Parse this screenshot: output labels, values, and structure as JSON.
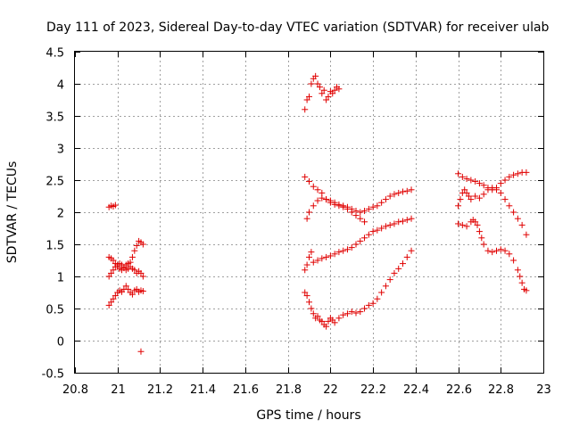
{
  "chart_data": {
    "type": "scatter",
    "title": "Day 111 of 2023, Sidereal Day-to-day VTEC variation (SDTVAR) for receiver ulab",
    "xlabel": "GPS time / hours",
    "ylabel": "SDTVAR / TECUs",
    "xlim": [
      20.8,
      23.0
    ],
    "ylim": [
      -0.5,
      4.5
    ],
    "xticks": [
      "20.8",
      "21",
      "21.2",
      "21.4",
      "21.6",
      "21.8",
      "22",
      "22.2",
      "22.4",
      "22.6",
      "22.8",
      "23"
    ],
    "yticks": [
      "-0.5",
      "0",
      "0.5",
      "1",
      "1.5",
      "2",
      "2.5",
      "3",
      "3.5",
      "4",
      "4.5"
    ],
    "grid": true,
    "marker": "+",
    "color": "#e00000",
    "series": [
      {
        "name": "seg-a1",
        "points": [
          [
            20.96,
            2.08
          ],
          [
            20.97,
            2.1
          ],
          [
            20.98,
            2.09
          ],
          [
            20.99,
            2.11
          ]
        ]
      },
      {
        "name": "seg-a2",
        "points": [
          [
            20.96,
            1.3
          ],
          [
            20.97,
            1.28
          ],
          [
            20.98,
            1.25
          ],
          [
            20.99,
            1.2
          ],
          [
            21.0,
            1.15
          ],
          [
            21.01,
            1.12
          ],
          [
            21.02,
            1.1
          ],
          [
            21.03,
            1.13
          ],
          [
            21.04,
            1.18
          ],
          [
            21.05,
            1.2
          ],
          [
            21.06,
            1.22
          ],
          [
            21.07,
            1.3
          ],
          [
            21.08,
            1.4
          ],
          [
            21.09,
            1.48
          ],
          [
            21.1,
            1.55
          ],
          [
            21.11,
            1.53
          ],
          [
            21.12,
            1.5
          ]
        ]
      },
      {
        "name": "seg-a3",
        "points": [
          [
            20.96,
            1.0
          ],
          [
            20.97,
            1.05
          ],
          [
            20.98,
            1.1
          ],
          [
            20.99,
            1.15
          ],
          [
            21.0,
            1.18
          ],
          [
            21.01,
            1.2
          ],
          [
            21.02,
            1.18
          ],
          [
            21.03,
            1.15
          ],
          [
            21.04,
            1.1
          ],
          [
            21.05,
            1.12
          ],
          [
            21.06,
            1.15
          ],
          [
            21.07,
            1.12
          ],
          [
            21.08,
            1.1
          ],
          [
            21.09,
            1.05
          ],
          [
            21.1,
            1.08
          ],
          [
            21.11,
            1.05
          ],
          [
            21.12,
            1.0
          ]
        ]
      },
      {
        "name": "seg-a4",
        "points": [
          [
            20.96,
            0.55
          ],
          [
            20.97,
            0.6
          ],
          [
            20.98,
            0.65
          ],
          [
            20.99,
            0.7
          ],
          [
            21.0,
            0.75
          ],
          [
            21.01,
            0.78
          ],
          [
            21.02,
            0.76
          ],
          [
            21.03,
            0.8
          ],
          [
            21.04,
            0.85
          ],
          [
            21.05,
            0.8
          ],
          [
            21.06,
            0.75
          ],
          [
            21.07,
            0.72
          ],
          [
            21.08,
            0.78
          ],
          [
            21.09,
            0.8
          ],
          [
            21.1,
            0.76
          ],
          [
            21.11,
            0.78
          ],
          [
            21.12,
            0.77
          ]
        ]
      },
      {
        "name": "seg-a5",
        "points": [
          [
            21.11,
            -0.17
          ]
        ]
      },
      {
        "name": "seg-b1",
        "points": [
          [
            21.88,
            3.6
          ],
          [
            21.89,
            3.75
          ],
          [
            21.9,
            3.8
          ],
          [
            21.91,
            4.0
          ],
          [
            21.92,
            4.08
          ],
          [
            21.93,
            4.12
          ],
          [
            21.94,
            4.0
          ],
          [
            21.95,
            3.95
          ],
          [
            21.96,
            3.85
          ],
          [
            21.97,
            3.9
          ],
          [
            21.98,
            3.75
          ],
          [
            21.99,
            3.8
          ],
          [
            22.0,
            3.88
          ],
          [
            22.01,
            3.85
          ],
          [
            22.02,
            3.9
          ],
          [
            22.03,
            3.95
          ],
          [
            22.04,
            3.92
          ]
        ]
      },
      {
        "name": "seg-b2",
        "points": [
          [
            21.88,
            2.55
          ],
          [
            21.9,
            2.48
          ],
          [
            21.92,
            2.4
          ],
          [
            21.94,
            2.35
          ],
          [
            21.96,
            2.3
          ],
          [
            21.98,
            2.2
          ],
          [
            22.0,
            2.15
          ],
          [
            22.02,
            2.12
          ],
          [
            22.04,
            2.1
          ],
          [
            22.06,
            2.08
          ],
          [
            22.08,
            2.05
          ],
          [
            22.1,
            2.0
          ],
          [
            22.12,
            1.95
          ],
          [
            22.14,
            1.9
          ],
          [
            22.16,
            1.85
          ]
        ]
      },
      {
        "name": "seg-b3",
        "points": [
          [
            21.89,
            1.9
          ],
          [
            21.9,
            2.0
          ],
          [
            21.92,
            2.1
          ],
          [
            21.94,
            2.18
          ],
          [
            21.96,
            2.22
          ],
          [
            21.98,
            2.2
          ],
          [
            22.0,
            2.18
          ],
          [
            22.02,
            2.15
          ],
          [
            22.04,
            2.12
          ],
          [
            22.06,
            2.1
          ],
          [
            22.08,
            2.08
          ],
          [
            22.1,
            2.05
          ],
          [
            22.12,
            2.02
          ],
          [
            22.14,
            2.0
          ],
          [
            22.16,
            2.02
          ],
          [
            22.18,
            2.05
          ],
          [
            22.2,
            2.08
          ],
          [
            22.22,
            2.1
          ],
          [
            22.24,
            2.15
          ],
          [
            22.26,
            2.2
          ],
          [
            22.28,
            2.25
          ],
          [
            22.3,
            2.28
          ],
          [
            22.32,
            2.3
          ],
          [
            22.34,
            2.32
          ],
          [
            22.36,
            2.33
          ],
          [
            22.38,
            2.35
          ]
        ]
      },
      {
        "name": "seg-b4",
        "points": [
          [
            21.88,
            1.1
          ],
          [
            21.89,
            1.18
          ],
          [
            21.9,
            1.3
          ],
          [
            21.91,
            1.38
          ],
          [
            21.92,
            1.22
          ],
          [
            21.94,
            1.25
          ],
          [
            21.96,
            1.28
          ],
          [
            21.98,
            1.3
          ],
          [
            22.0,
            1.32
          ],
          [
            22.02,
            1.35
          ],
          [
            22.04,
            1.38
          ],
          [
            22.06,
            1.4
          ],
          [
            22.08,
            1.42
          ],
          [
            22.1,
            1.45
          ],
          [
            22.12,
            1.5
          ],
          [
            22.14,
            1.55
          ],
          [
            22.16,
            1.6
          ],
          [
            22.18,
            1.65
          ],
          [
            22.2,
            1.7
          ],
          [
            22.22,
            1.72
          ],
          [
            22.24,
            1.75
          ],
          [
            22.26,
            1.78
          ],
          [
            22.28,
            1.8
          ],
          [
            22.3,
            1.82
          ],
          [
            22.32,
            1.85
          ],
          [
            22.34,
            1.86
          ],
          [
            22.36,
            1.88
          ],
          [
            22.38,
            1.9
          ]
        ]
      },
      {
        "name": "seg-b5",
        "points": [
          [
            21.88,
            0.75
          ],
          [
            21.89,
            0.7
          ],
          [
            21.9,
            0.6
          ],
          [
            21.91,
            0.5
          ],
          [
            21.92,
            0.42
          ],
          [
            21.93,
            0.35
          ],
          [
            21.94,
            0.38
          ],
          [
            21.95,
            0.32
          ],
          [
            21.96,
            0.3
          ],
          [
            21.97,
            0.25
          ],
          [
            21.98,
            0.22
          ],
          [
            21.99,
            0.3
          ],
          [
            22.0,
            0.35
          ],
          [
            22.01,
            0.32
          ],
          [
            22.02,
            0.28
          ],
          [
            22.04,
            0.35
          ],
          [
            22.06,
            0.4
          ],
          [
            22.08,
            0.42
          ],
          [
            22.1,
            0.45
          ],
          [
            22.12,
            0.43
          ],
          [
            22.14,
            0.45
          ],
          [
            22.16,
            0.5
          ],
          [
            22.18,
            0.55
          ],
          [
            22.2,
            0.58
          ],
          [
            22.22,
            0.65
          ],
          [
            22.24,
            0.75
          ],
          [
            22.26,
            0.85
          ],
          [
            22.28,
            0.95
          ],
          [
            22.3,
            1.05
          ],
          [
            22.32,
            1.12
          ],
          [
            22.34,
            1.2
          ],
          [
            22.36,
            1.3
          ],
          [
            22.38,
            1.4
          ]
        ]
      },
      {
        "name": "seg-c1",
        "points": [
          [
            22.6,
            2.6
          ],
          [
            22.62,
            2.55
          ],
          [
            22.64,
            2.52
          ],
          [
            22.66,
            2.5
          ],
          [
            22.68,
            2.48
          ],
          [
            22.7,
            2.45
          ],
          [
            22.72,
            2.42
          ],
          [
            22.74,
            2.38
          ],
          [
            22.76,
            2.35
          ],
          [
            22.78,
            2.38
          ],
          [
            22.8,
            2.45
          ],
          [
            22.82,
            2.5
          ],
          [
            22.84,
            2.55
          ],
          [
            22.86,
            2.58
          ],
          [
            22.88,
            2.6
          ],
          [
            22.9,
            2.62
          ],
          [
            22.92,
            2.62
          ]
        ]
      },
      {
        "name": "seg-c2",
        "points": [
          [
            22.6,
            2.1
          ],
          [
            22.61,
            2.2
          ],
          [
            22.62,
            2.3
          ],
          [
            22.63,
            2.35
          ],
          [
            22.64,
            2.3
          ],
          [
            22.65,
            2.25
          ],
          [
            22.66,
            2.2
          ],
          [
            22.68,
            2.25
          ],
          [
            22.7,
            2.22
          ],
          [
            22.72,
            2.28
          ],
          [
            22.74,
            2.35
          ],
          [
            22.76,
            2.38
          ],
          [
            22.78,
            2.35
          ],
          [
            22.8,
            2.3
          ],
          [
            22.82,
            2.2
          ],
          [
            22.84,
            2.1
          ],
          [
            22.86,
            2.0
          ],
          [
            22.88,
            1.9
          ],
          [
            22.9,
            1.8
          ],
          [
            22.92,
            1.65
          ]
        ]
      },
      {
        "name": "seg-c3",
        "points": [
          [
            22.6,
            1.82
          ],
          [
            22.62,
            1.8
          ],
          [
            22.64,
            1.78
          ],
          [
            22.66,
            1.85
          ],
          [
            22.67,
            1.88
          ],
          [
            22.68,
            1.85
          ],
          [
            22.69,
            1.8
          ],
          [
            22.7,
            1.7
          ],
          [
            22.71,
            1.6
          ],
          [
            22.72,
            1.5
          ],
          [
            22.74,
            1.4
          ],
          [
            22.76,
            1.38
          ],
          [
            22.78,
            1.4
          ],
          [
            22.8,
            1.42
          ],
          [
            22.82,
            1.4
          ],
          [
            22.84,
            1.35
          ],
          [
            22.86,
            1.25
          ],
          [
            22.88,
            1.1
          ],
          [
            22.89,
            1.0
          ],
          [
            22.9,
            0.9
          ],
          [
            22.91,
            0.8
          ],
          [
            22.92,
            0.78
          ]
        ]
      }
    ]
  }
}
